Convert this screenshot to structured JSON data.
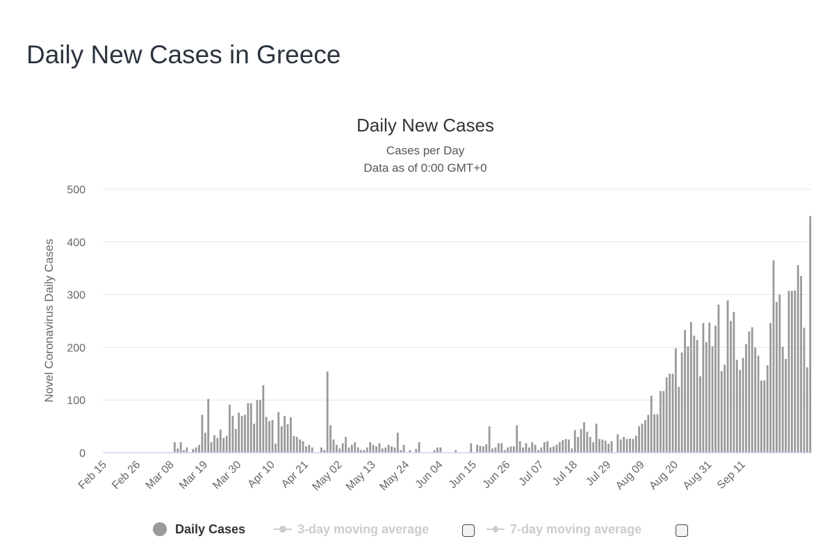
{
  "page": {
    "title": "Daily New Cases in Greece"
  },
  "legend": {
    "daily_cases": "Daily Cases",
    "avg3": "3-day moving average",
    "avg7": "7-day moving average"
  },
  "colors": {
    "bar": "#999999",
    "grid": "#e6e6e6",
    "axis_text": "#666666",
    "baseline": "#ccd6eb"
  },
  "chart_data": {
    "type": "bar",
    "title": "Daily New Cases",
    "subtitle": "Cases per Day",
    "subtitle2": "Data as of 0:00 GMT+0",
    "ylabel": "Novel Coronavirus Daily Cases",
    "xlabel": "",
    "ylim": [
      0,
      500
    ],
    "yticks": [
      0,
      100,
      200,
      300,
      400,
      500
    ],
    "xtick_labels": [
      "Feb 15",
      "Feb 26",
      "Mar 08",
      "Mar 19",
      "Mar 30",
      "Apr 10",
      "Apr 21",
      "May 02",
      "May 13",
      "May 24",
      "Jun 04",
      "Jun 15",
      "Jun 26",
      "Jul 07",
      "Jul 18",
      "Jul 29",
      "Aug 09",
      "Aug 20",
      "Aug 31",
      "Sep 11"
    ],
    "start_date": "Feb 15",
    "series": [
      {
        "name": "Daily Cases",
        "values": [
          0,
          0,
          0,
          0,
          0,
          0,
          0,
          0,
          0,
          0,
          0,
          0,
          0,
          0,
          0,
          0,
          0,
          0,
          0,
          0,
          0,
          0,
          0,
          20,
          8,
          20,
          5,
          10,
          0,
          7,
          10,
          15,
          72,
          38,
          102,
          20,
          33,
          28,
          44,
          28,
          32,
          91,
          70,
          45,
          76,
          70,
          72,
          94,
          94,
          55,
          100,
          100,
          128,
          68,
          60,
          62,
          17,
          77,
          50,
          70,
          54,
          67,
          32,
          30,
          25,
          22,
          12,
          15,
          10,
          0,
          0,
          10,
          5,
          154,
          52,
          25,
          15,
          8,
          18,
          30,
          10,
          15,
          20,
          10,
          5,
          5,
          10,
          20,
          15,
          12,
          18,
          8,
          10,
          15,
          12,
          10,
          38,
          5,
          15,
          0,
          5,
          0,
          7,
          20,
          0,
          0,
          0,
          0,
          5,
          10,
          10,
          0,
          0,
          0,
          0,
          5,
          0,
          0,
          0,
          0,
          18,
          0,
          15,
          13,
          12,
          16,
          50,
          8,
          10,
          18,
          18,
          5,
          10,
          12,
          12,
          52,
          22,
          10,
          18,
          10,
          20,
          15,
          5,
          10,
          20,
          22,
          10,
          12,
          15,
          20,
          24,
          26,
          25,
          8,
          43,
          30,
          45,
          58,
          40,
          30,
          20,
          55,
          26,
          25,
          23,
          17,
          22,
          0,
          35,
          25,
          30,
          26,
          27,
          26,
          32,
          50,
          55,
          62,
          72,
          108,
          73,
          73,
          117,
          117,
          143,
          150,
          150,
          198,
          125,
          190,
          233,
          202,
          248,
          222,
          214,
          145,
          246,
          210,
          247,
          202,
          241,
          281,
          155,
          167,
          289,
          250,
          267,
          176,
          157,
          180,
          206,
          230,
          238,
          200,
          184,
          137,
          137,
          166,
          246,
          365,
          286,
          300,
          201,
          178,
          307,
          307,
          308,
          356,
          335,
          237,
          162,
          449
        ]
      }
    ]
  }
}
